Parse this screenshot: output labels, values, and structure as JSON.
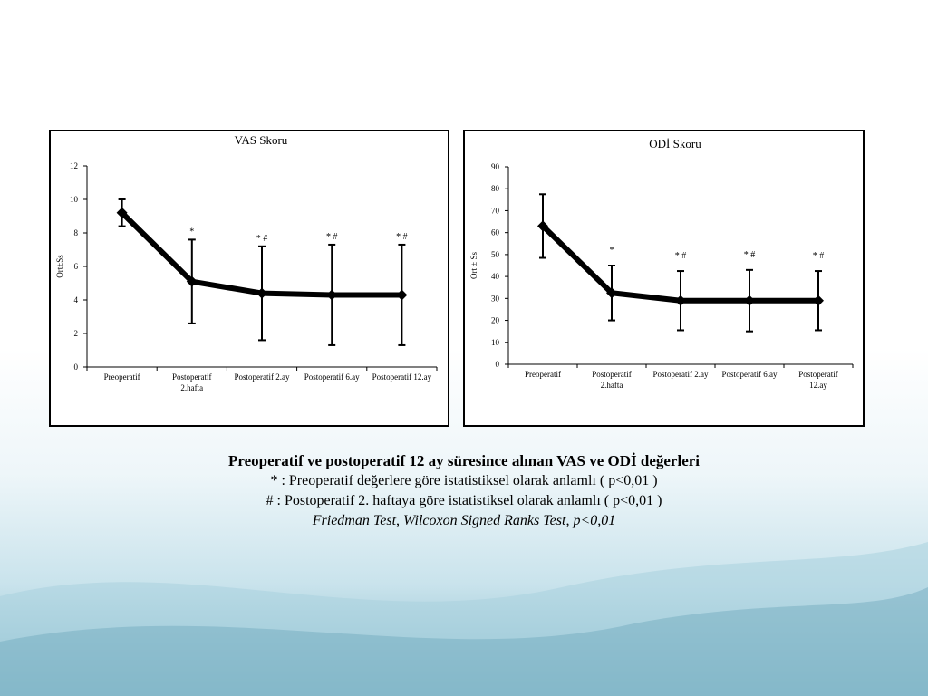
{
  "chart_data": [
    {
      "id": "vas",
      "type": "line",
      "title": "VAS Skoru",
      "ylabel": "Ort±Ss",
      "xlabel": "",
      "ylim": [
        0,
        12
      ],
      "yticks": [
        0,
        2,
        4,
        6,
        8,
        10,
        12
      ],
      "categories": [
        [
          "Preoperatif"
        ],
        [
          "Postoperatif",
          "2.hafta"
        ],
        [
          "Postoperatif 2.ay"
        ],
        [
          "Postoperatif 6.ay"
        ],
        [
          "Postoperatif 12.ay"
        ]
      ],
      "values": [
        9.2,
        5.1,
        4.4,
        4.3,
        4.3
      ],
      "errors": [
        0.8,
        2.5,
        2.8,
        3.0,
        3.0
      ],
      "significance": [
        "",
        "*",
        "* #",
        "* #",
        "* #"
      ],
      "legend": "none"
    },
    {
      "id": "odi",
      "type": "line",
      "title": "ODİ Skoru",
      "ylabel": "Ort ± Ss",
      "xlabel": "",
      "ylim": [
        0,
        90
      ],
      "yticks": [
        0,
        10,
        20,
        30,
        40,
        50,
        60,
        70,
        80,
        90
      ],
      "categories": [
        [
          "Preoperatif"
        ],
        [
          "Postoperatif",
          "2.hafta"
        ],
        [
          "Postoperatif 2.ay"
        ],
        [
          "Postoperatif 6.ay"
        ],
        [
          "Postoperatif",
          "12.ay"
        ]
      ],
      "values": [
        63,
        32.5,
        29,
        29,
        29
      ],
      "errors": [
        14.5,
        12.5,
        13.5,
        14,
        13.5
      ],
      "significance": [
        "",
        "*",
        "* #",
        "* #",
        "* #"
      ],
      "legend": "none"
    }
  ],
  "caption": {
    "title": "Preoperatif ve postoperatif 12 ay süresince alınan VAS ve  ODİ değerleri",
    "note1": "*  : Preoperatif değerlere göre istatistiksel olarak anlamlı ( p<0,01 )",
    "note2": "#  : Postoperatif 2. haftaya göre istatistiksel olarak anlamlı ( p<0,01 )",
    "note3": "Friedman Test, Wilcoxon Signed Ranks Test,   p<0,01"
  }
}
